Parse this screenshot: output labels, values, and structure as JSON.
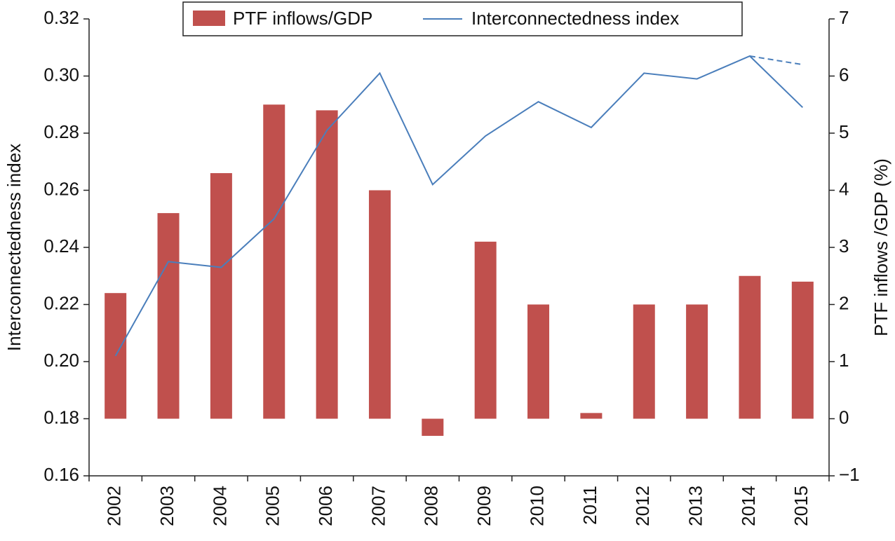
{
  "chart_data": {
    "type": "bar-line",
    "categories": [
      "2002",
      "2003",
      "2004",
      "2005",
      "2006",
      "2007",
      "2008",
      "2009",
      "2010",
      "2011",
      "2012",
      "2013",
      "2014",
      "2015"
    ],
    "series": [
      {
        "name": "PTF inflows/GDP",
        "type": "bar",
        "axis": "y2",
        "color": "#c0504d",
        "values": [
          2.2,
          3.6,
          4.3,
          5.5,
          5.4,
          4.0,
          -0.3,
          3.1,
          2.0,
          0.1,
          2.0,
          2.0,
          2.5,
          2.4
        ]
      },
      {
        "name": "Interconnectedness index",
        "type": "line",
        "axis": "y",
        "color": "#4a7ebb",
        "values": [
          0.202,
          0.235,
          0.233,
          0.25,
          0.281,
          0.301,
          0.262,
          0.279,
          0.291,
          0.282,
          0.301,
          0.299,
          0.307,
          0.289
        ],
        "dashed_values": [
          null,
          null,
          null,
          null,
          null,
          null,
          null,
          null,
          null,
          null,
          null,
          null,
          0.307,
          0.304
        ]
      }
    ],
    "ylabel": "Interconnectedness index",
    "y2label": "PTF inflows /GDP (%)",
    "ylim": [
      0.16,
      0.32
    ],
    "yticks": [
      {
        "value": 0.16,
        "label": "0.16"
      },
      {
        "value": 0.18,
        "label": "0.18"
      },
      {
        "value": 0.2,
        "label": "0.20"
      },
      {
        "value": 0.22,
        "label": "0.22"
      },
      {
        "value": 0.24,
        "label": "0.24"
      },
      {
        "value": 0.26,
        "label": "0.26"
      },
      {
        "value": 0.28,
        "label": "0.28"
      },
      {
        "value": 0.3,
        "label": "0.30"
      },
      {
        "value": 0.32,
        "label": "0.32"
      }
    ],
    "y2lim": [
      -1,
      7
    ],
    "y2ticks": [
      {
        "value": -1,
        "label": "−1"
      },
      0,
      1,
      2,
      3,
      4,
      5,
      6,
      7
    ],
    "legend": "top"
  }
}
